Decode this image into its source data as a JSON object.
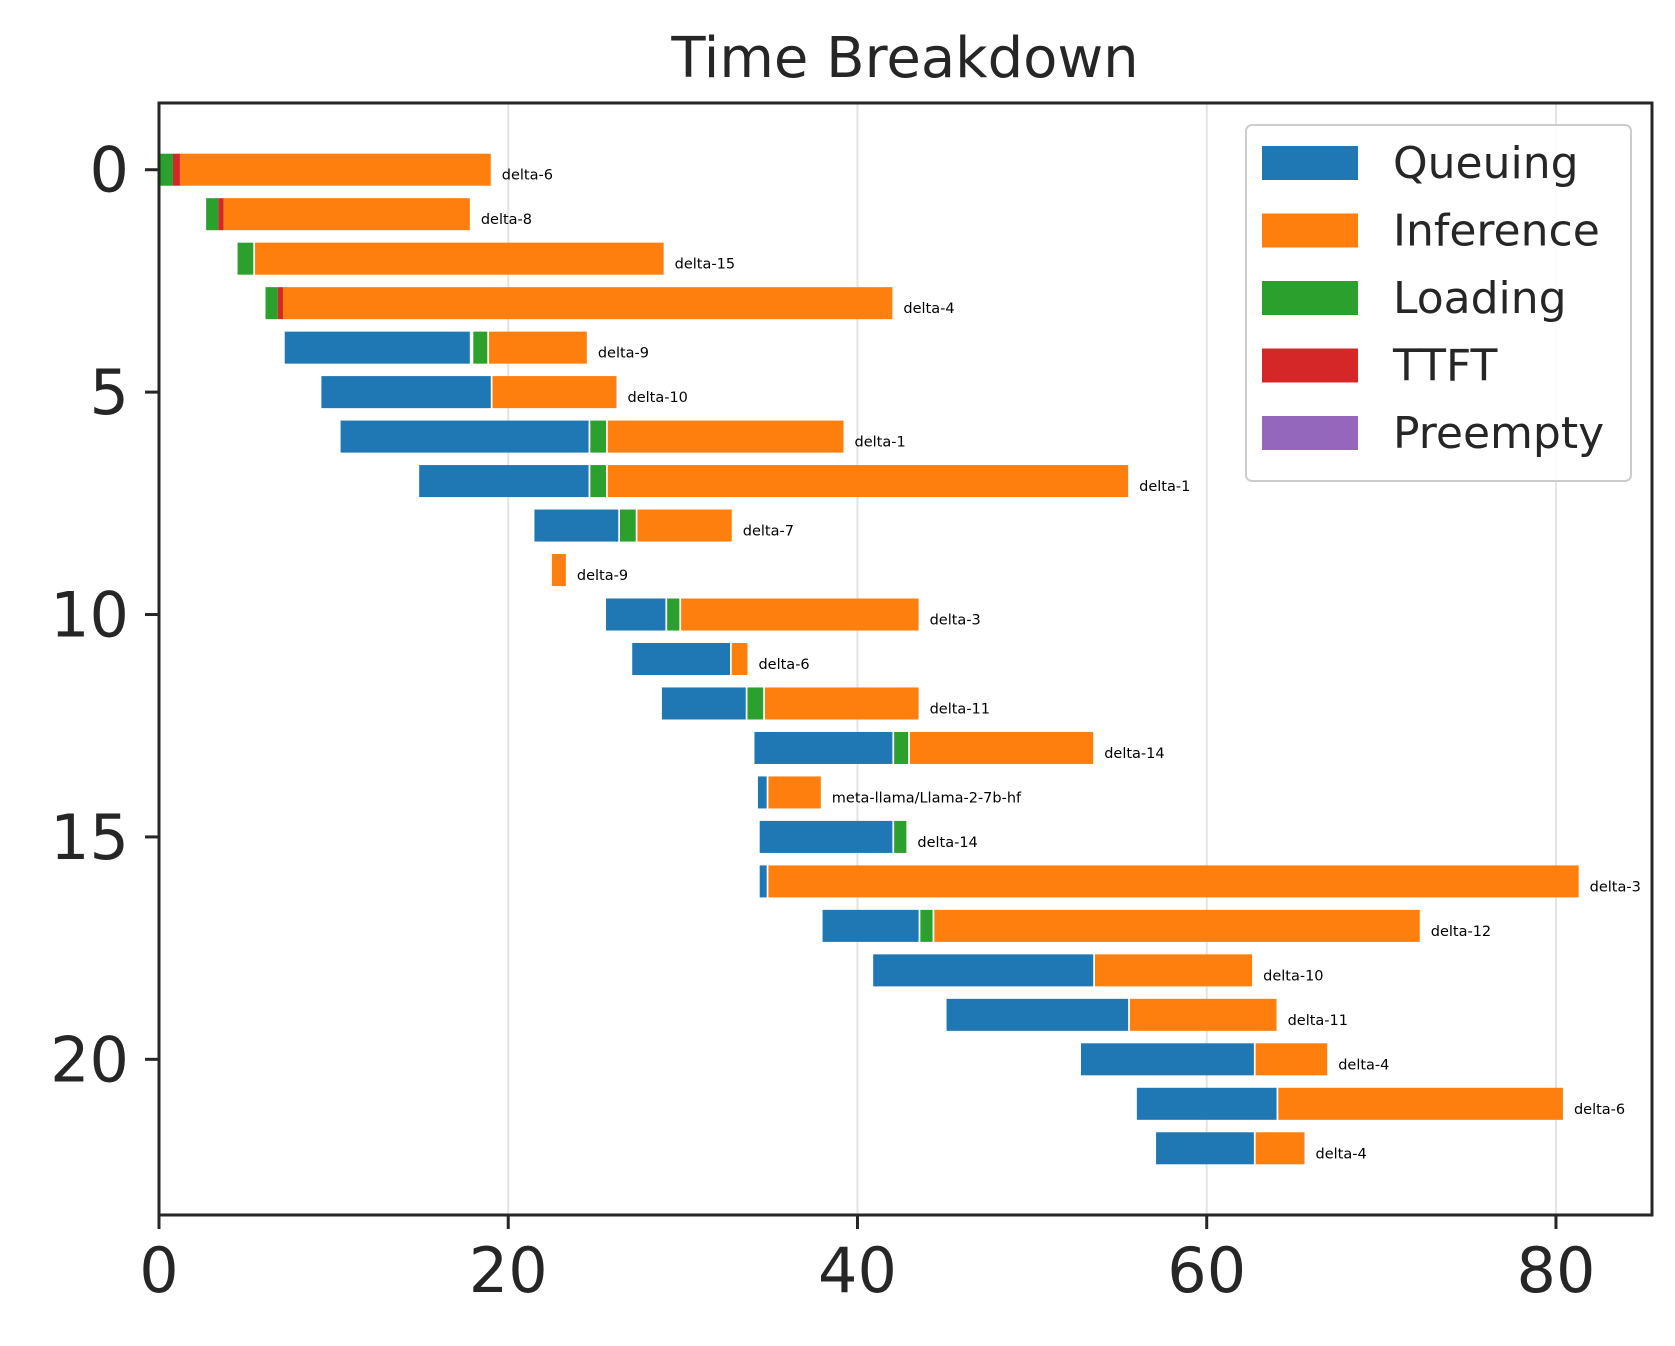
{
  "chart_data": {
    "type": "bar",
    "orientation": "horizontal-stacked-gantt",
    "title": "Time Breakdown",
    "xlabel": "",
    "ylabel": "",
    "xlim": [
      0,
      85.5
    ],
    "ylim": [
      23.5,
      -1.5
    ],
    "x_ticks": [
      0,
      20,
      40,
      60,
      80
    ],
    "y_ticks": [
      0,
      5,
      10,
      15,
      20
    ],
    "grid": "vertical",
    "legend_position": "upper right",
    "colors": {
      "Queuing": "#1f77b4",
      "Inference": "#ff7f0e",
      "Loading": "#2ca02c",
      "TTFT": "#d62728",
      "Preempty": "#9467bd"
    },
    "legend": [
      "Queuing",
      "Inference",
      "Loading",
      "TTFT",
      "Preempty"
    ],
    "rows": [
      {
        "label": "delta-6",
        "segments": [
          {
            "phase": "Loading",
            "start": 0.0,
            "end": 0.8
          },
          {
            "phase": "TTFT",
            "start": 0.8,
            "end": 1.2
          },
          {
            "phase": "Inference",
            "start": 1.2,
            "end": 19.0
          }
        ]
      },
      {
        "label": "delta-8",
        "segments": [
          {
            "phase": "Loading",
            "start": 2.7,
            "end": 3.4
          },
          {
            "phase": "TTFT",
            "start": 3.4,
            "end": 3.7
          },
          {
            "phase": "Inference",
            "start": 3.7,
            "end": 17.8
          }
        ]
      },
      {
        "label": "delta-15",
        "segments": [
          {
            "phase": "Loading",
            "start": 4.5,
            "end": 5.4
          },
          {
            "phase": "Inference",
            "start": 5.5,
            "end": 28.9
          }
        ]
      },
      {
        "label": "delta-4",
        "segments": [
          {
            "phase": "Loading",
            "start": 6.1,
            "end": 6.8
          },
          {
            "phase": "TTFT",
            "start": 6.8,
            "end": 7.1
          },
          {
            "phase": "Inference",
            "start": 7.1,
            "end": 42.0
          }
        ]
      },
      {
        "label": "delta-9",
        "segments": [
          {
            "phase": "Queuing",
            "start": 7.2,
            "end": 17.8
          },
          {
            "phase": "Loading",
            "start": 18.0,
            "end": 18.8
          },
          {
            "phase": "Inference",
            "start": 18.9,
            "end": 24.5
          }
        ]
      },
      {
        "label": "delta-10",
        "segments": [
          {
            "phase": "Queuing",
            "start": 9.3,
            "end": 19.0
          },
          {
            "phase": "Inference",
            "start": 19.1,
            "end": 26.2
          }
        ]
      },
      {
        "label": "delta-1",
        "segments": [
          {
            "phase": "Queuing",
            "start": 10.4,
            "end": 24.6
          },
          {
            "phase": "Loading",
            "start": 24.7,
            "end": 25.6
          },
          {
            "phase": "Inference",
            "start": 25.7,
            "end": 39.2
          }
        ]
      },
      {
        "label": "delta-1",
        "segments": [
          {
            "phase": "Queuing",
            "start": 14.9,
            "end": 24.6
          },
          {
            "phase": "Loading",
            "start": 24.7,
            "end": 25.6
          },
          {
            "phase": "Inference",
            "start": 25.7,
            "end": 55.5
          }
        ]
      },
      {
        "label": "delta-7",
        "segments": [
          {
            "phase": "Queuing",
            "start": 21.5,
            "end": 26.3
          },
          {
            "phase": "Loading",
            "start": 26.4,
            "end": 27.3
          },
          {
            "phase": "Inference",
            "start": 27.4,
            "end": 32.8
          }
        ]
      },
      {
        "label": "delta-9",
        "segments": [
          {
            "phase": "Inference",
            "start": 22.5,
            "end": 23.3
          }
        ]
      },
      {
        "label": "delta-3",
        "segments": [
          {
            "phase": "Queuing",
            "start": 25.6,
            "end": 29.0
          },
          {
            "phase": "Loading",
            "start": 29.1,
            "end": 29.8
          },
          {
            "phase": "Inference",
            "start": 29.9,
            "end": 43.5
          }
        ]
      },
      {
        "label": "delta-6",
        "segments": [
          {
            "phase": "Queuing",
            "start": 27.1,
            "end": 32.7
          },
          {
            "phase": "Inference",
            "start": 32.8,
            "end": 33.7
          }
        ]
      },
      {
        "label": "delta-11",
        "segments": [
          {
            "phase": "Queuing",
            "start": 28.8,
            "end": 33.6
          },
          {
            "phase": "Loading",
            "start": 33.7,
            "end": 34.6
          },
          {
            "phase": "Inference",
            "start": 34.7,
            "end": 43.5
          }
        ]
      },
      {
        "label": "delta-14",
        "segments": [
          {
            "phase": "Queuing",
            "start": 34.1,
            "end": 42.0
          },
          {
            "phase": "Loading",
            "start": 42.1,
            "end": 42.9
          },
          {
            "phase": "Inference",
            "start": 43.0,
            "end": 53.5
          }
        ]
      },
      {
        "label": "meta-llama/Llama-2-7b-hf",
        "segments": [
          {
            "phase": "Queuing",
            "start": 34.3,
            "end": 34.8
          },
          {
            "phase": "Inference",
            "start": 34.9,
            "end": 37.9
          }
        ]
      },
      {
        "label": "delta-14",
        "segments": [
          {
            "phase": "Queuing",
            "start": 34.4,
            "end": 42.0
          },
          {
            "phase": "Loading",
            "start": 42.1,
            "end": 42.8
          }
        ]
      },
      {
        "label": "delta-3",
        "segments": [
          {
            "phase": "Queuing",
            "start": 34.4,
            "end": 34.8
          },
          {
            "phase": "Inference",
            "start": 34.9,
            "end": 81.3
          }
        ]
      },
      {
        "label": "delta-12",
        "segments": [
          {
            "phase": "Queuing",
            "start": 38.0,
            "end": 43.5
          },
          {
            "phase": "Loading",
            "start": 43.6,
            "end": 44.3
          },
          {
            "phase": "Inference",
            "start": 44.4,
            "end": 72.2
          }
        ]
      },
      {
        "label": "delta-10",
        "segments": [
          {
            "phase": "Queuing",
            "start": 40.9,
            "end": 53.5
          },
          {
            "phase": "Inference",
            "start": 53.6,
            "end": 62.6
          }
        ]
      },
      {
        "label": "delta-11",
        "segments": [
          {
            "phase": "Queuing",
            "start": 45.1,
            "end": 55.5
          },
          {
            "phase": "Inference",
            "start": 55.6,
            "end": 64.0
          }
        ]
      },
      {
        "label": "delta-4",
        "segments": [
          {
            "phase": "Queuing",
            "start": 52.8,
            "end": 62.7
          },
          {
            "phase": "Inference",
            "start": 62.8,
            "end": 66.9
          }
        ]
      },
      {
        "label": "delta-6",
        "segments": [
          {
            "phase": "Queuing",
            "start": 56.0,
            "end": 64.0
          },
          {
            "phase": "Inference",
            "start": 64.1,
            "end": 80.4
          }
        ]
      },
      {
        "label": "delta-4",
        "segments": [
          {
            "phase": "Queuing",
            "start": 57.1,
            "end": 62.7
          },
          {
            "phase": "Inference",
            "start": 62.8,
            "end": 65.6
          }
        ]
      }
    ]
  }
}
